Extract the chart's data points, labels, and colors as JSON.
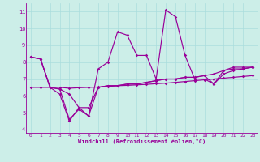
{
  "xlabel": "Windchill (Refroidissement éolien,°C)",
  "bg_color": "#cceee8",
  "line_color": "#990099",
  "grid_color": "#aadddd",
  "xlim": [
    -0.5,
    23.5
  ],
  "ylim": [
    3.8,
    11.5
  ],
  "yticks": [
    4,
    5,
    6,
    7,
    8,
    9,
    10,
    11
  ],
  "xticks": [
    0,
    1,
    2,
    3,
    4,
    5,
    6,
    7,
    8,
    9,
    10,
    11,
    12,
    13,
    14,
    15,
    16,
    17,
    18,
    19,
    20,
    21,
    22,
    23
  ],
  "series": [
    [
      8.3,
      8.2,
      6.5,
      6.1,
      4.5,
      5.3,
      4.8,
      7.6,
      8.0,
      9.8,
      9.6,
      8.4,
      8.4,
      7.0,
      11.1,
      10.7,
      8.4,
      7.0,
      7.0,
      6.7,
      7.5,
      7.6,
      7.6,
      7.7
    ],
    [
      8.3,
      8.2,
      6.5,
      6.4,
      6.1,
      5.3,
      5.3,
      6.5,
      6.6,
      6.6,
      6.7,
      6.7,
      6.8,
      6.9,
      7.0,
      7.0,
      7.1,
      7.1,
      7.2,
      6.7,
      7.3,
      7.5,
      7.6,
      7.7
    ],
    [
      6.5,
      6.5,
      6.5,
      6.5,
      6.45,
      6.48,
      6.5,
      6.52,
      6.55,
      6.6,
      6.62,
      6.65,
      6.68,
      6.72,
      6.75,
      6.8,
      6.85,
      6.9,
      6.95,
      7.0,
      7.05,
      7.1,
      7.15,
      7.2
    ],
    [
      8.3,
      8.2,
      6.5,
      6.4,
      4.6,
      5.2,
      4.8,
      6.5,
      6.6,
      6.6,
      6.7,
      6.7,
      6.8,
      6.9,
      7.0,
      7.0,
      7.1,
      7.1,
      7.2,
      7.3,
      7.5,
      7.7,
      7.7,
      7.7
    ]
  ]
}
